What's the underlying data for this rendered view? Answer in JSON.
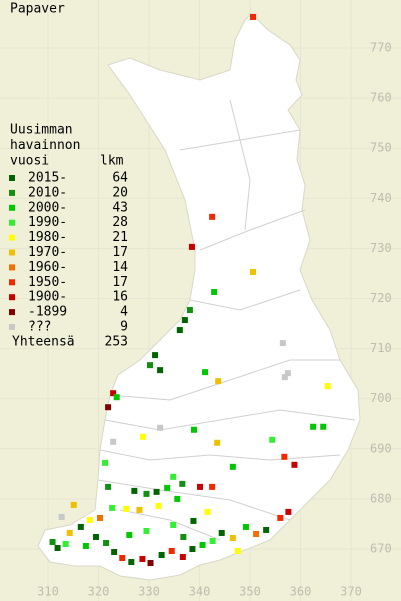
{
  "title": "Papaver",
  "legend": {
    "heading": [
      "Uusimman",
      "havainnon",
      "vuosi"
    ],
    "count_header": "lkm",
    "items": [
      {
        "label": "2015-",
        "count": 64,
        "color": "#006400"
      },
      {
        "label": "2010-",
        "count": 20,
        "color": "#119011"
      },
      {
        "label": "2000-",
        "count": 43,
        "color": "#00c800"
      },
      {
        "label": "1990-",
        "count": 28,
        "color": "#33ee33"
      },
      {
        "label": "1980-",
        "count": 21,
        "color": "#ffff00"
      },
      {
        "label": "1970-",
        "count": 17,
        "color": "#f0c000"
      },
      {
        "label": "1960-",
        "count": 14,
        "color": "#f07000"
      },
      {
        "label": "1950-",
        "count": 17,
        "color": "#f02800"
      },
      {
        "label": "1900-",
        "count": 16,
        "color": "#c80000"
      },
      {
        "label": "-1899",
        "count": 4,
        "color": "#800000"
      },
      {
        "label": "???",
        "count": 9,
        "color": "#c8c8c8"
      }
    ],
    "total_label": "Yhteensä",
    "total": 253
  },
  "xticks": [
    310,
    320,
    330,
    340,
    350,
    360,
    370
  ],
  "yticks": [
    670,
    680,
    690,
    700,
    710,
    720,
    730,
    740,
    750,
    760,
    770
  ],
  "points": [
    [
      350.6,
      776.2,
      7
    ],
    [
      342.5,
      736.3,
      7
    ],
    [
      338.5,
      730.3,
      8
    ],
    [
      350.6,
      725.3,
      5
    ],
    [
      342.9,
      721.3,
      2
    ],
    [
      337.1,
      715.7,
      0
    ],
    [
      336.1,
      713.7,
      0
    ],
    [
      338.1,
      717.7,
      1
    ],
    [
      356.5,
      711.1,
      10
    ],
    [
      331.2,
      708.7,
      0
    ],
    [
      332.2,
      705.7,
      0
    ],
    [
      330.2,
      706.7,
      1
    ],
    [
      322.9,
      701.1,
      8
    ],
    [
      323.6,
      700.3,
      2
    ],
    [
      357.5,
      705.1,
      10
    ],
    [
      356.9,
      704.3,
      10
    ],
    [
      365.4,
      702.5,
      4
    ],
    [
      343.7,
      703.5,
      5
    ],
    [
      341.1,
      705.3,
      2
    ],
    [
      321.9,
      698.3,
      9
    ],
    [
      332.2,
      694.2,
      10
    ],
    [
      328.8,
      692.4,
      4
    ],
    [
      343.5,
      691.2,
      5
    ],
    [
      338.9,
      693.8,
      2
    ],
    [
      354.4,
      691.8,
      3
    ],
    [
      362.5,
      694.4,
      2
    ],
    [
      364.5,
      694.4,
      2
    ],
    [
      322.9,
      691.4,
      10
    ],
    [
      356.8,
      688.4,
      7
    ],
    [
      358.8,
      686.8,
      8
    ],
    [
      340.1,
      682.4,
      8
    ],
    [
      342.5,
      682.4,
      7
    ],
    [
      346.6,
      686.4,
      2
    ],
    [
      321.3,
      687.2,
      3
    ],
    [
      321.9,
      682.4,
      1
    ],
    [
      327.1,
      681.6,
      0
    ],
    [
      329.5,
      681.0,
      1
    ],
    [
      331.5,
      681.4,
      0
    ],
    [
      333.6,
      682.2,
      2
    ],
    [
      334.8,
      684.4,
      3
    ],
    [
      335.6,
      680.0,
      2
    ],
    [
      336.6,
      683.0,
      1
    ],
    [
      331.9,
      678.6,
      4
    ],
    [
      328.1,
      677.8,
      5
    ],
    [
      325.5,
      678.0,
      4
    ],
    [
      322.7,
      678.2,
      3
    ],
    [
      320.3,
      676.2,
      6
    ],
    [
      318.3,
      675.8,
      4
    ],
    [
      316.5,
      674.4,
      0
    ],
    [
      314.3,
      673.2,
      5
    ],
    [
      311.9,
      670.2,
      0
    ],
    [
      310.9,
      671.4,
      1
    ],
    [
      313.5,
      671.0,
      3
    ],
    [
      317.5,
      670.6,
      2
    ],
    [
      319.5,
      672.4,
      0
    ],
    [
      321.5,
      671.2,
      1
    ],
    [
      323.1,
      669.4,
      0
    ],
    [
      324.7,
      668.2,
      7
    ],
    [
      326.5,
      667.4,
      0
    ],
    [
      328.7,
      668.0,
      8
    ],
    [
      330.3,
      667.2,
      9
    ],
    [
      332.5,
      668.8,
      0
    ],
    [
      334.5,
      669.6,
      7
    ],
    [
      336.7,
      668.4,
      8
    ],
    [
      338.6,
      670.0,
      0
    ],
    [
      340.6,
      670.8,
      2
    ],
    [
      342.6,
      671.6,
      3
    ],
    [
      344.4,
      673.2,
      0
    ],
    [
      346.6,
      672.2,
      5
    ],
    [
      349.2,
      674.4,
      2
    ],
    [
      351.2,
      673.0,
      6
    ],
    [
      353.2,
      673.8,
      0
    ],
    [
      356.0,
      676.2,
      7
    ],
    [
      357.6,
      677.4,
      8
    ],
    [
      334.8,
      674.8,
      3
    ],
    [
      338.8,
      675.6,
      0
    ],
    [
      341.6,
      677.4,
      4
    ],
    [
      336.8,
      672.4,
      1
    ],
    [
      347.6,
      669.6,
      4
    ],
    [
      329.5,
      673.6,
      3
    ],
    [
      326.1,
      672.8,
      2
    ],
    [
      315.1,
      678.8,
      5
    ],
    [
      312.7,
      676.4,
      10
    ]
  ]
}
